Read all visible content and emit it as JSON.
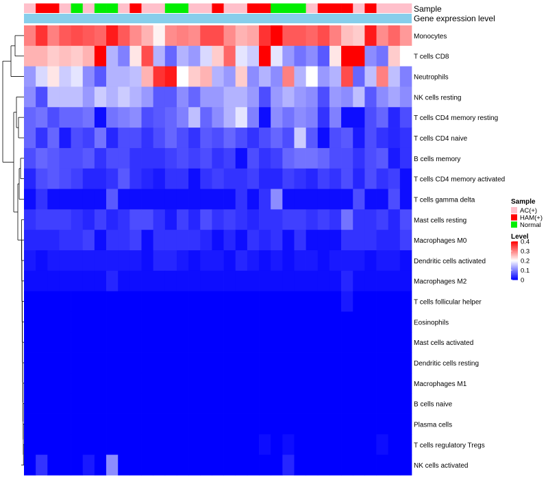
{
  "chart_data": {
    "type": "heatmap",
    "title": "",
    "xlabel": "",
    "ylabel": "",
    "row_annotation_labels": {
      "sample": "Sample",
      "gene_expression": "Gene expression level"
    },
    "columns": {
      "count": 33,
      "sample": [
        "AC(+)",
        "HAM(+)",
        "HAM(+)",
        "AC(+)",
        "Normal",
        "AC(+)",
        "Normal",
        "Normal",
        "AC(+)",
        "HAM(+)",
        "AC(+)",
        "AC(+)",
        "Normal",
        "Normal",
        "AC(+)",
        "AC(+)",
        "HAM(+)",
        "AC(+)",
        "AC(+)",
        "HAM(+)",
        "HAM(+)",
        "Normal",
        "Normal",
        "Normal",
        "AC(+)",
        "HAM(+)",
        "HAM(+)",
        "HAM(+)",
        "AC(+)",
        "HAM(+)",
        "AC(+)",
        "AC(+)",
        "AC(+)"
      ],
      "gene_expression_level": "constant"
    },
    "rows": [
      "Monocytes",
      "T cells CD8",
      "Neutrophils",
      "NK cells resting",
      "T cells CD4 memory resting",
      "T cells CD4 naive",
      "B cells memory",
      "T cells CD4 memory activated",
      "T cells gamma delta",
      "Mast cells resting",
      "Macrophages M0",
      "Dendritic cells activated",
      "Macrophages M2",
      "T cells follicular helper",
      "Eosinophils",
      "Mast cells activated",
      "Dendritic cells resting",
      "Macrophages M1",
      "B cells naive",
      "Plasma cells",
      "T cells regulatory  Tregs",
      "NK cells activated"
    ],
    "values": [
      [
        0.3,
        0.36,
        0.3,
        0.33,
        0.34,
        0.33,
        0.32,
        0.38,
        0.33,
        0.29,
        0.26,
        0.21,
        0.29,
        0.3,
        0.29,
        0.34,
        0.34,
        0.29,
        0.26,
        0.27,
        0.36,
        0.4,
        0.33,
        0.33,
        0.32,
        0.34,
        0.3,
        0.25,
        0.24,
        0.38,
        0.29,
        0.32,
        0.28
      ],
      [
        0.26,
        0.26,
        0.24,
        0.25,
        0.24,
        0.26,
        0.4,
        0.14,
        0.1,
        0.22,
        0.34,
        0.14,
        0.08,
        0.14,
        0.12,
        0.17,
        0.24,
        0.32,
        0.18,
        0.16,
        0.4,
        0.18,
        0.12,
        0.09,
        0.11,
        0.07,
        0.22,
        0.4,
        0.4,
        0.11,
        0.09,
        0.24,
        0.2
      ],
      [
        0.12,
        0.17,
        0.22,
        0.16,
        0.18,
        0.11,
        0.07,
        0.14,
        0.14,
        0.15,
        0.26,
        0.36,
        0.38,
        0.2,
        0.24,
        0.26,
        0.14,
        0.12,
        0.24,
        0.11,
        0.14,
        0.11,
        0.3,
        0.14,
        0.2,
        0.12,
        0.14,
        0.34,
        0.08,
        0.15,
        0.3,
        0.15,
        0.1
      ],
      [
        0.11,
        0.06,
        0.15,
        0.15,
        0.15,
        0.12,
        0.16,
        0.14,
        0.16,
        0.14,
        0.12,
        0.07,
        0.07,
        0.11,
        0.08,
        0.12,
        0.12,
        0.14,
        0.14,
        0.12,
        0.06,
        0.12,
        0.14,
        0.12,
        0.11,
        0.06,
        0.12,
        0.11,
        0.15,
        0.07,
        0.11,
        0.13,
        0.11
      ],
      [
        0.08,
        0.09,
        0.06,
        0.08,
        0.08,
        0.09,
        0.01,
        0.09,
        0.1,
        0.11,
        0.06,
        0.07,
        0.08,
        0.1,
        0.15,
        0.08,
        0.11,
        0.14,
        0.18,
        0.1,
        0.01,
        0.11,
        0.09,
        0.11,
        0.1,
        0.04,
        0.1,
        0.01,
        0.01,
        0.06,
        0.08,
        0.03,
        0.06
      ],
      [
        0.08,
        0.04,
        0.08,
        0.02,
        0.06,
        0.05,
        0.09,
        0.03,
        0.06,
        0.06,
        0.04,
        0.06,
        0.08,
        0.06,
        0.04,
        0.07,
        0.06,
        0.08,
        0.06,
        0.04,
        0.06,
        0.08,
        0.06,
        0.16,
        0.07,
        0.01,
        0.06,
        0.07,
        0.02,
        0.06,
        0.04,
        0.03,
        0.04
      ],
      [
        0.06,
        0.08,
        0.07,
        0.06,
        0.06,
        0.07,
        0.04,
        0.06,
        0.06,
        0.04,
        0.04,
        0.04,
        0.05,
        0.06,
        0.05,
        0.06,
        0.04,
        0.05,
        0.01,
        0.06,
        0.04,
        0.05,
        0.08,
        0.09,
        0.09,
        0.08,
        0.06,
        0.06,
        0.04,
        0.06,
        0.07,
        0.02,
        0.04
      ],
      [
        0.03,
        0.06,
        0.07,
        0.06,
        0.05,
        0.03,
        0.03,
        0.04,
        0.07,
        0.04,
        0.03,
        0.02,
        0.04,
        0.04,
        0.01,
        0.04,
        0.05,
        0.04,
        0.04,
        0.05,
        0.03,
        0.03,
        0.05,
        0.04,
        0.03,
        0.05,
        0.04,
        0.06,
        0.03,
        0.06,
        0.04,
        0.05,
        0.01
      ],
      [
        0.01,
        0.04,
        0.01,
        0.01,
        0.01,
        0.01,
        0.01,
        0.07,
        0.01,
        0.01,
        0.01,
        0.01,
        0.01,
        0.01,
        0.01,
        0.01,
        0.01,
        0.01,
        0.04,
        0.01,
        0.04,
        0.11,
        0.01,
        0.01,
        0.01,
        0.01,
        0.01,
        0.01,
        0.06,
        0.01,
        0.01,
        0.06,
        0.01
      ],
      [
        0.04,
        0.05,
        0.05,
        0.05,
        0.04,
        0.03,
        0.05,
        0.03,
        0.04,
        0.06,
        0.06,
        0.04,
        0.02,
        0.05,
        0.03,
        0.06,
        0.04,
        0.05,
        0.04,
        0.03,
        0.04,
        0.04,
        0.05,
        0.05,
        0.04,
        0.05,
        0.04,
        0.09,
        0.04,
        0.04,
        0.05,
        0.03,
        0.06
      ],
      [
        0.03,
        0.03,
        0.03,
        0.04,
        0.04,
        0.05,
        0.01,
        0.04,
        0.04,
        0.05,
        0.01,
        0.04,
        0.04,
        0.04,
        0.04,
        0.03,
        0.01,
        0.03,
        0.01,
        0.04,
        0.03,
        0.04,
        0.01,
        0.04,
        0.01,
        0.01,
        0.01,
        0.04,
        0.04,
        0.04,
        0.03,
        0.03,
        0.05
      ],
      [
        0.02,
        0.01,
        0.02,
        0.02,
        0.02,
        0.02,
        0.02,
        0.02,
        0.02,
        0.02,
        0.01,
        0.03,
        0.03,
        0.02,
        0.01,
        0.02,
        0.02,
        0.01,
        0.03,
        0.02,
        0.01,
        0.02,
        0.01,
        0.02,
        0.02,
        0.01,
        0.02,
        0.02,
        0.02,
        0.01,
        0.02,
        0.02,
        0.01
      ],
      [
        0.01,
        0.01,
        0.01,
        0.01,
        0.01,
        0.01,
        0.01,
        0.03,
        0.01,
        0.01,
        0.01,
        0.01,
        0.01,
        0.01,
        0.01,
        0.01,
        0.01,
        0.01,
        0.01,
        0.01,
        0.01,
        0.01,
        0.01,
        0.01,
        0.01,
        0.01,
        0.01,
        0.03,
        0.01,
        0.01,
        0.01,
        0.01,
        0.01
      ],
      [
        0.0,
        0.0,
        0.0,
        0.0,
        0.0,
        0.0,
        0.0,
        0.0,
        0.0,
        0.0,
        0.0,
        0.0,
        0.0,
        0.0,
        0.0,
        0.0,
        0.0,
        0.0,
        0.0,
        0.0,
        0.0,
        0.0,
        0.0,
        0.0,
        0.0,
        0.0,
        0.0,
        0.02,
        0.0,
        0.0,
        0.0,
        0.0,
        0.0
      ],
      [
        0.0,
        0.0,
        0.0,
        0.0,
        0.0,
        0.0,
        0.0,
        0.0,
        0.0,
        0.0,
        0.0,
        0.0,
        0.0,
        0.0,
        0.0,
        0.0,
        0.0,
        0.0,
        0.0,
        0.0,
        0.0,
        0.0,
        0.0,
        0.0,
        0.0,
        0.0,
        0.0,
        0.0,
        0.0,
        0.0,
        0.0,
        0.0,
        0.0
      ],
      [
        0.0,
        0.0,
        0.0,
        0.0,
        0.0,
        0.0,
        0.0,
        0.0,
        0.0,
        0.0,
        0.0,
        0.0,
        0.0,
        0.0,
        0.0,
        0.0,
        0.0,
        0.0,
        0.0,
        0.0,
        0.0,
        0.0,
        0.0,
        0.0,
        0.0,
        0.0,
        0.0,
        0.0,
        0.0,
        0.0,
        0.0,
        0.0,
        0.0
      ],
      [
        0.0,
        0.0,
        0.0,
        0.0,
        0.0,
        0.0,
        0.0,
        0.0,
        0.0,
        0.0,
        0.0,
        0.0,
        0.0,
        0.0,
        0.0,
        0.0,
        0.0,
        0.0,
        0.0,
        0.0,
        0.0,
        0.0,
        0.0,
        0.0,
        0.0,
        0.0,
        0.0,
        0.0,
        0.0,
        0.0,
        0.0,
        0.0,
        0.0
      ],
      [
        0.0,
        0.0,
        0.0,
        0.0,
        0.0,
        0.0,
        0.0,
        0.0,
        0.0,
        0.0,
        0.0,
        0.0,
        0.0,
        0.0,
        0.0,
        0.0,
        0.0,
        0.0,
        0.0,
        0.0,
        0.0,
        0.0,
        0.0,
        0.0,
        0.0,
        0.0,
        0.0,
        0.0,
        0.0,
        0.0,
        0.0,
        0.0,
        0.0
      ],
      [
        0.0,
        0.0,
        0.0,
        0.0,
        0.0,
        0.0,
        0.0,
        0.0,
        0.0,
        0.0,
        0.0,
        0.0,
        0.0,
        0.0,
        0.0,
        0.0,
        0.0,
        0.0,
        0.0,
        0.0,
        0.0,
        0.0,
        0.0,
        0.0,
        0.0,
        0.0,
        0.0,
        0.0,
        0.0,
        0.0,
        0.0,
        0.0,
        0.0
      ],
      [
        0.0,
        0.0,
        0.0,
        0.0,
        0.0,
        0.0,
        0.0,
        0.0,
        0.0,
        0.0,
        0.0,
        0.0,
        0.0,
        0.0,
        0.0,
        0.0,
        0.0,
        0.0,
        0.0,
        0.0,
        0.0,
        0.0,
        0.0,
        0.0,
        0.0,
        0.0,
        0.0,
        0.0,
        0.0,
        0.0,
        0.0,
        0.0,
        0.0
      ],
      [
        0.0,
        0.0,
        0.0,
        0.0,
        0.0,
        0.0,
        0.0,
        0.0,
        0.0,
        0.0,
        0.0,
        0.0,
        0.0,
        0.0,
        0.0,
        0.0,
        0.0,
        0.0,
        0.0,
        0.0,
        0.01,
        0.0,
        0.01,
        0.0,
        0.0,
        0.0,
        0.0,
        0.0,
        0.0,
        0.0,
        0.01,
        0.0,
        0.0
      ],
      [
        0.0,
        0.04,
        0.0,
        0.0,
        0.0,
        0.02,
        0.0,
        0.11,
        0.0,
        0.0,
        0.0,
        0.0,
        0.0,
        0.0,
        0.0,
        0.0,
        0.0,
        0.0,
        0.0,
        0.0,
        0.0,
        0.0,
        0.03,
        0.0,
        0.0,
        0.0,
        0.0,
        0.0,
        0.0,
        0.0,
        0.0,
        0.0,
        0.0
      ]
    ],
    "legend": {
      "placement": "right",
      "sample_title": "Sample",
      "sample_items": [
        {
          "label": "AC(+)",
          "color": "#ffc0cb"
        },
        {
          "label": "HAM(+)",
          "color": "#ff0000"
        },
        {
          "label": "Normal",
          "color": "#00ee00"
        }
      ],
      "level_title": "Level",
      "level_ticks": [
        "0.4",
        "0.3",
        "0.2",
        "0.1",
        "0"
      ],
      "level_range": [
        0,
        0.4
      ]
    },
    "colors": {
      "low": "#0000ff",
      "mid": "#ffffff",
      "high": "#ff0000",
      "gene_expression": "#87ceeb",
      "dendrogram": "#000000"
    }
  }
}
